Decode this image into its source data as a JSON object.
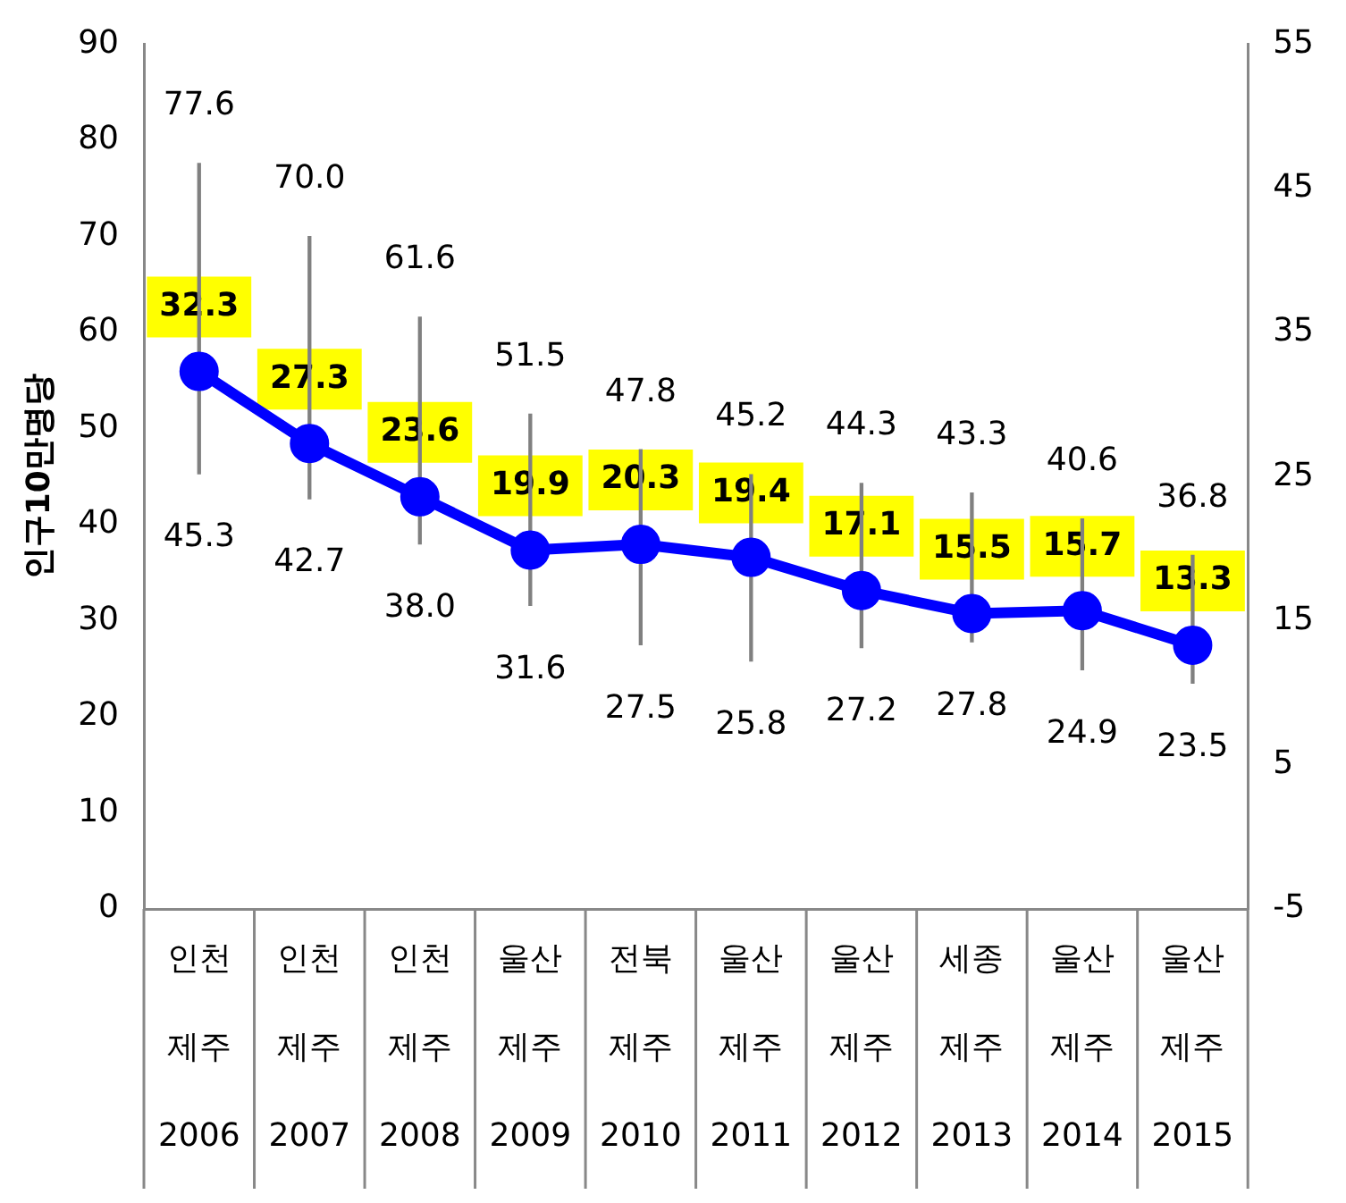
{
  "chart_data": {
    "type": "line",
    "ylabel": "인구10만명당",
    "categories": [
      "인천\n제주\n2006",
      "인천\n제주\n2007",
      "인천\n제주\n2008",
      "울산\n제주\n2009",
      "전북\n제주\n2010",
      "울산\n제주\n2011",
      "울산\n제주\n2012",
      "세종\n제주\n2013",
      "울산\n제주\n2014",
      "울산\n제주\n2015"
    ],
    "series": [
      {
        "type": "bar",
        "color": "#808080",
        "base": [
          45.3,
          42.7,
          38.0,
          31.6,
          27.5,
          25.8,
          27.2,
          27.8,
          24.9,
          23.5
        ],
        "values": [
          32.3,
          27.3,
          23.6,
          19.9,
          20.3,
          19.4,
          17.1,
          15.5,
          15.7,
          13.3
        ]
      },
      {
        "axis": "y2",
        "color": "#0000ff",
        "values": [
          32.3,
          27.3,
          23.6,
          19.9,
          20.3,
          19.4,
          17.1,
          15.5,
          15.7,
          13.3
        ],
        "value_labels": [
          "32.3",
          "27.3",
          "23.6",
          "19.9",
          "20.3",
          "19.4",
          "17.1",
          "15.5",
          "15.7",
          "13.3"
        ]
      }
    ],
    "ylim": [
      0,
      90
    ],
    "yticks": [
      0,
      10,
      20,
      30,
      40,
      50,
      60,
      70,
      80,
      90
    ],
    "y2lim": [
      -5,
      55
    ],
    "y2ticks": [
      -5,
      5,
      15,
      25,
      35,
      45,
      55
    ],
    "grid": false,
    "legend": false,
    "marker": "circle",
    "line_style": "solid",
    "annotations": [
      {
        "text": "77.6",
        "x": "인천\n제주\n2006",
        "y": 77.6
      },
      {
        "text": "45.3",
        "x": "인천\n제주\n2006",
        "y": 45.3
      },
      {
        "text": "70.0",
        "x": "인천\n제주\n2007",
        "y": 70.0
      },
      {
        "text": "42.7",
        "x": "인천\n제주\n2007",
        "y": 42.7
      },
      {
        "text": "61.6",
        "x": "인천\n제주\n2008",
        "y": 61.6
      },
      {
        "text": "38.0",
        "x": "인천\n제주\n2008",
        "y": 38.0
      },
      {
        "text": "51.5",
        "x": "울산\n제주\n2009",
        "y": 51.5
      },
      {
        "text": "31.6",
        "x": "울산\n제주\n2009",
        "y": 31.6
      },
      {
        "text": "47.8",
        "x": "전북\n제주\n2010",
        "y": 47.8
      },
      {
        "text": "27.5",
        "x": "전북\n제주\n2010",
        "y": 27.5
      },
      {
        "text": "45.2",
        "x": "울산\n제주\n2011",
        "y": 45.2
      },
      {
        "text": "25.8",
        "x": "울산\n제주\n2011",
        "y": 25.8
      },
      {
        "text": "44.3",
        "x": "울산\n제주\n2012",
        "y": 44.3
      },
      {
        "text": "27.2",
        "x": "울산\n제주\n2012",
        "y": 27.2
      },
      {
        "text": "43.3",
        "x": "세종\n제주\n2013",
        "y": 43.3
      },
      {
        "text": "27.8",
        "x": "세종\n제주\n2013",
        "y": 27.8
      },
      {
        "text": "40.6",
        "x": "울산\n제주\n2014",
        "y": 40.6
      },
      {
        "text": "24.9",
        "x": "울산\n제주\n2014",
        "y": 24.9
      },
      {
        "text": "36.8",
        "x": "울산\n제주\n2015",
        "y": 36.8
      },
      {
        "text": "23.5",
        "x": "울산\n제주\n2015",
        "y": 23.5
      }
    ]
  }
}
